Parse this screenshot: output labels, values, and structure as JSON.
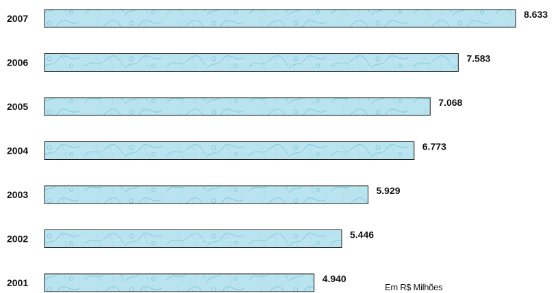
{
  "chart_data": {
    "type": "bar",
    "orientation": "horizontal",
    "categories": [
      "2007",
      "2006",
      "2005",
      "2004",
      "2003",
      "2002",
      "2001"
    ],
    "values": [
      8633,
      7583,
      7068,
      6773,
      5929,
      5446,
      4940
    ],
    "value_labels": [
      "8.633",
      "7.583",
      "7.068",
      "6.773",
      "5.929",
      "5.446",
      "4.940"
    ],
    "unit_note": "Em R$ Milhões",
    "title": "",
    "xlabel": "",
    "ylabel": "",
    "xlim": [
      0,
      8633
    ],
    "grid": false,
    "legend": "none",
    "bar_fill": "#b5e3ee",
    "bar_texture": "#8fcfe0",
    "bar_stroke": "#1a1a1a"
  }
}
